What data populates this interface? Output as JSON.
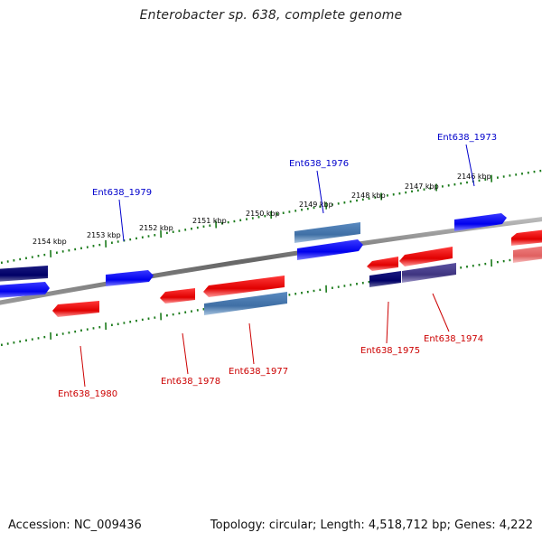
{
  "title": "Enterobacter sp. 638, complete genome",
  "footer": {
    "accession": "Accession: NC_009436",
    "summary": "Topology: circular; Length: 4,518,712 bp; Genes: 4,222"
  },
  "colors": {
    "backbone": "#7a7a7a",
    "tick": "#1a7a1a",
    "gene_blue": "#0000ee",
    "gene_navy": "#000070",
    "gene_steel": "#4a7ab0",
    "gene_red": "#ee0000",
    "gene_purple": "#4a4090",
    "gene_pink": "#e87070",
    "label_blue": "#0000cc",
    "label_red": "#cc0000",
    "kbp_label": "#000000"
  },
  "kbp_labels": [
    "2154 kbp",
    "2153 kbp",
    "2152 kbp",
    "2151 kbp",
    "2150 kbp",
    "2149 kbp",
    "2148 kbp",
    "2147 kbp",
    "2146 kbp"
  ],
  "gene_labels": {
    "ent1973": "Ent638_1973",
    "ent1974": "Ent638_1974",
    "ent1975": "Ent638_1975",
    "ent1976": "Ent638_1976",
    "ent1977": "Ent638_1977",
    "ent1978": "Ent638_1978",
    "ent1979": "Ent638_1979",
    "ent1980": "Ent638_1980"
  }
}
